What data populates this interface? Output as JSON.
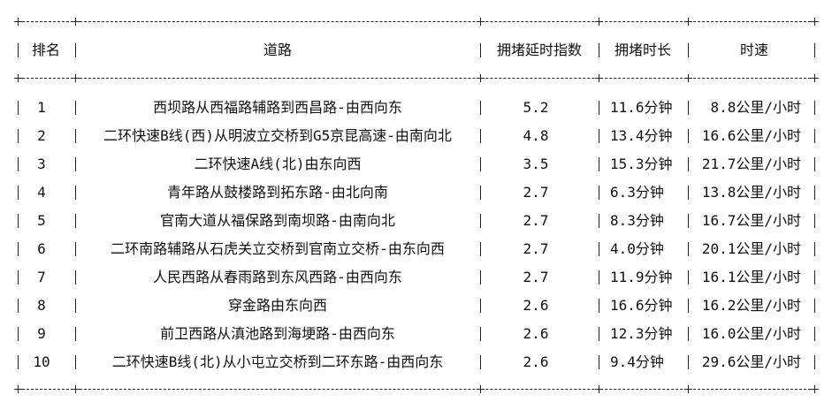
{
  "headers": [
    "排名",
    "道路",
    "拥堵延时指数",
    "拥堵时长",
    "时速"
  ],
  "rows": [
    {
      "rank": "1",
      "road": "西坝路从西福路辅路到西昌路-由西向东",
      "index": "5.2",
      "duration": "11.6分钟",
      "speed": "8.8公里/小时"
    },
    {
      "rank": "2",
      "road": "二环快速B线(西)从明波立交桥到G5京昆高速-由南向北",
      "index": "4.8",
      "duration": "13.4分钟",
      "speed": "16.6公里/小时"
    },
    {
      "rank": "3",
      "road": "二环快速A线(北)由东向西",
      "index": "3.5",
      "duration": "15.3分钟",
      "speed": "21.7公里/小时"
    },
    {
      "rank": "4",
      "road": "青年路从鼓楼路到拓东路-由北向南",
      "index": "2.7",
      "duration": "6.3分钟",
      "speed": "13.8公里/小时"
    },
    {
      "rank": "5",
      "road": "官南大道从福保路到南坝路-由南向北",
      "index": "2.7",
      "duration": "8.3分钟",
      "speed": "16.7公里/小时"
    },
    {
      "rank": "6",
      "road": "二环南路辅路从石虎关立交桥到官南立交桥-由东向西",
      "index": "2.7",
      "duration": "4.0分钟",
      "speed": "20.1公里/小时"
    },
    {
      "rank": "7",
      "road": "人民西路从春雨路到东风西路-由西向东",
      "index": "2.7",
      "duration": "11.9分钟",
      "speed": "16.1公里/小时"
    },
    {
      "rank": "8",
      "road": "穿金路由东向西",
      "index": "2.6",
      "duration": "16.6分钟",
      "speed": "16.2公里/小时"
    },
    {
      "rank": "9",
      "road": "前卫西路从滇池路到海埂路-由西向东",
      "index": "2.6",
      "duration": "12.3分钟",
      "speed": "16.0公里/小时"
    },
    {
      "rank": "10",
      "road": "二环快速B线(北)从小屯立交桥到二环东路-由西向东",
      "index": "2.6",
      "duration": "9.4分钟",
      "speed": "29.6公里/小时"
    }
  ]
}
